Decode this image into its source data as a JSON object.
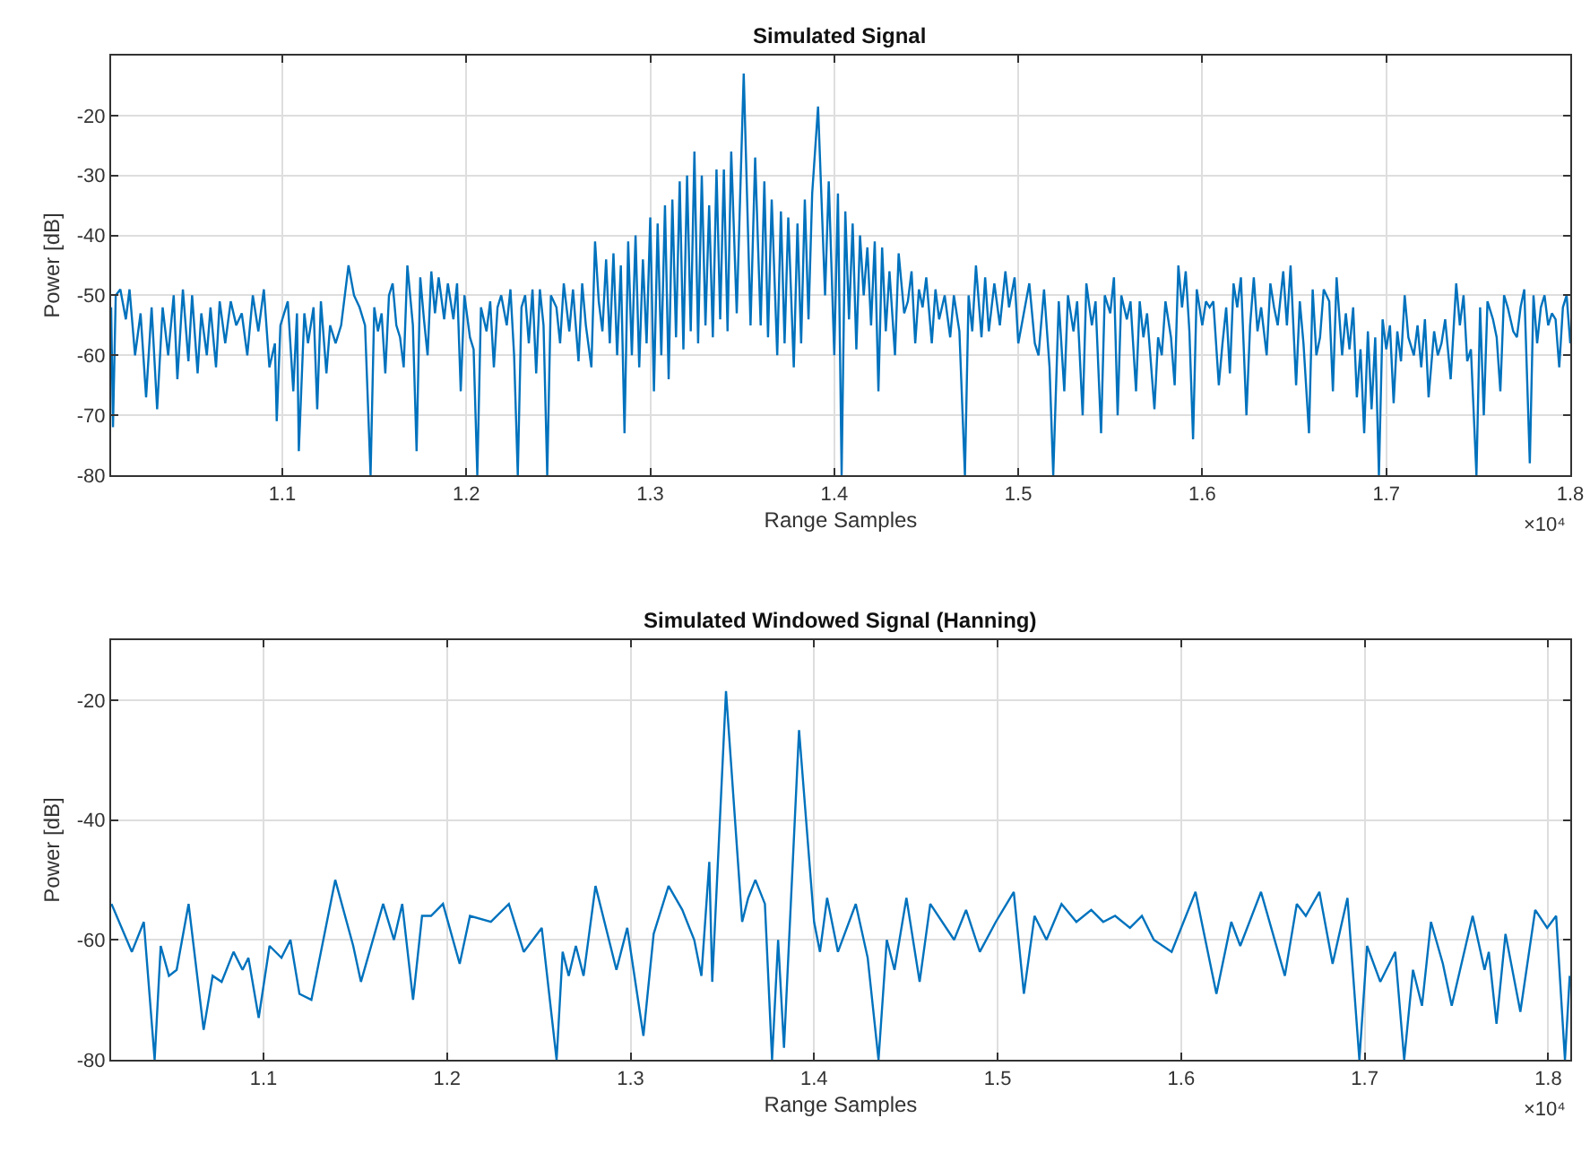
{
  "chart_data": [
    {
      "type": "line",
      "title": "Simulated Signal",
      "xlabel": "Range Samples",
      "ylabel": "Power [dB]",
      "x": [
        1.007,
        1.008,
        1.0095,
        1.012,
        1.015,
        1.017,
        1.02,
        1.023,
        1.026,
        1.029,
        1.032,
        1.035,
        1.038,
        1.041,
        1.043,
        1.046,
        1.049,
        1.051,
        1.054,
        1.056,
        1.059,
        1.061,
        1.064,
        1.066,
        1.069,
        1.072,
        1.075,
        1.078,
        1.081,
        1.084,
        1.087,
        1.09,
        1.093,
        1.096,
        1.097,
        1.099,
        1.103,
        1.106,
        1.108,
        1.109,
        1.112,
        1.114,
        1.117,
        1.119,
        1.121,
        1.124,
        1.126,
        1.129,
        1.132,
        1.136,
        1.139,
        1.142,
        1.145,
        1.148,
        1.15,
        1.152,
        1.154,
        1.156,
        1.158,
        1.16,
        1.162,
        1.164,
        1.166,
        1.168,
        1.171,
        1.173,
        1.175,
        1.177,
        1.179,
        1.181,
        1.183,
        1.185,
        1.188,
        1.19,
        1.193,
        1.195,
        1.197,
        1.199,
        1.202,
        1.204,
        1.206,
        1.208,
        1.211,
        1.213,
        1.215,
        1.217,
        1.219,
        1.222,
        1.224,
        1.226,
        1.228,
        1.23,
        1.232,
        1.234,
        1.236,
        1.238,
        1.24,
        1.242,
        1.244,
        1.246,
        1.249,
        1.251,
        1.253,
        1.256,
        1.258,
        1.261,
        1.263,
        1.265,
        1.268,
        1.27,
        1.272,
        1.274,
        1.276,
        1.278,
        1.28,
        1.282,
        1.284,
        1.286,
        1.288,
        1.29,
        1.292,
        1.294,
        1.296,
        1.298,
        1.3,
        1.302,
        1.304,
        1.306,
        1.308,
        1.31,
        1.312,
        1.314,
        1.316,
        1.318,
        1.32,
        1.322,
        1.324,
        1.326,
        1.328,
        1.33,
        1.332,
        1.334,
        1.336,
        1.338,
        1.34,
        1.342,
        1.344,
        1.347,
        1.3508,
        1.3545,
        1.357,
        1.36,
        1.362,
        1.364,
        1.366,
        1.369,
        1.371,
        1.373,
        1.375,
        1.378,
        1.38,
        1.382,
        1.384,
        1.386,
        1.388,
        1.3912,
        1.395,
        1.397,
        1.4,
        1.402,
        1.404,
        1.406,
        1.408,
        1.41,
        1.412,
        1.414,
        1.416,
        1.418,
        1.42,
        1.422,
        1.424,
        1.426,
        1.428,
        1.43,
        1.433,
        1.435,
        1.438,
        1.44,
        1.442,
        1.444,
        1.446,
        1.448,
        1.45,
        1.453,
        1.455,
        1.457,
        1.46,
        1.463,
        1.465,
        1.468,
        1.471,
        1.473,
        1.475,
        1.477,
        1.48,
        1.482,
        1.484,
        1.487,
        1.49,
        1.493,
        1.495,
        1.498,
        1.5,
        1.503,
        1.506,
        1.509,
        1.511,
        1.514,
        1.517,
        1.519,
        1.522,
        1.525,
        1.527,
        1.53,
        1.532,
        1.535,
        1.537,
        1.54,
        1.542,
        1.545,
        1.547,
        1.55,
        1.552,
        1.554,
        1.556,
        1.559,
        1.561,
        1.564,
        1.566,
        1.568,
        1.57,
        1.574,
        1.576,
        1.578,
        1.58,
        1.583,
        1.585,
        1.587,
        1.589,
        1.591,
        1.593,
        1.595,
        1.597,
        1.6,
        1.602,
        1.604,
        1.606,
        1.609,
        1.611,
        1.613,
        1.615,
        1.617,
        1.619,
        1.621,
        1.624,
        1.626,
        1.628,
        1.63,
        1.632,
        1.635,
        1.637,
        1.639,
        1.641,
        1.644,
        1.646,
        1.648,
        1.651,
        1.653,
        1.655,
        1.658,
        1.66,
        1.662,
        1.664,
        1.666,
        1.669,
        1.671,
        1.673,
        1.676,
        1.678,
        1.68,
        1.682,
        1.684,
        1.686,
        1.688,
        1.69,
        1.692,
        1.694,
        1.696,
        1.698,
        1.7,
        1.702,
        1.704,
        1.706,
        1.708,
        1.71,
        1.712,
        1.715,
        1.717,
        1.719,
        1.721,
        1.723,
        1.726,
        1.728,
        1.73,
        1.732,
        1.735,
        1.738,
        1.74,
        1.742,
        1.744,
        1.746,
        1.749,
        1.751,
        1.753,
        1.755,
        1.758,
        1.76,
        1.762,
        1.764,
        1.766,
        1.769,
        1.771,
        1.773,
        1.775,
        1.778,
        1.78,
        1.782,
        1.784,
        1.786,
        1.788,
        1.79,
        1.792,
        1.794,
        1.796,
        1.798,
        1.8
      ],
      "series": [
        {
          "color": "#0072bd",
          "values": [
            -52,
            -72,
            -50,
            -49,
            -54,
            -49,
            -60,
            -53,
            -67,
            -52,
            -69,
            -52,
            -60,
            -50,
            -64,
            -49,
            -61,
            -50,
            -63,
            -53,
            -60,
            -52,
            -62,
            -51,
            -58,
            -51,
            -55,
            -53,
            -60,
            -50,
            -56,
            -49,
            -62,
            -58,
            -71,
            -55,
            -51,
            -66,
            -53,
            -76,
            -53,
            -58,
            -52,
            -69,
            -51,
            -63,
            -55,
            -58,
            -55,
            -45,
            -50,
            -52,
            -55,
            -80,
            -52,
            -56,
            -53,
            -63,
            -50,
            -48,
            -55,
            -57,
            -62,
            -45,
            -55,
            -76,
            -47,
            -54,
            -60,
            -46,
            -53,
            -47,
            -54,
            -48,
            -54,
            -48,
            -66,
            -50,
            -57,
            -59,
            -80,
            -52,
            -56,
            -51,
            -62,
            -52,
            -50,
            -55,
            -49,
            -60,
            -80,
            -52,
            -50,
            -58,
            -49,
            -63,
            -49,
            -55,
            -80,
            -50,
            -52,
            -58,
            -48,
            -56,
            -49,
            -61,
            -48,
            -55,
            -62,
            -41,
            -51,
            -56,
            -44,
            -58,
            -43,
            -60,
            -45,
            -73,
            -41,
            -60,
            -40,
            -62,
            -44,
            -58,
            -37,
            -66,
            -38,
            -60,
            -35,
            -64,
            -34,
            -57,
            -31,
            -59,
            -30,
            -56,
            -26,
            -58,
            -30,
            -55,
            -35,
            -57,
            -29,
            -54,
            -29,
            -56,
            -26,
            -53,
            -13,
            -55,
            -27,
            -55,
            -31,
            -57,
            -34,
            -60,
            -36,
            -58,
            -37,
            -62,
            -38,
            -58,
            -34,
            -54,
            -33,
            -18.5,
            -50,
            -31,
            -60,
            -33,
            -80,
            -36,
            -54,
            -38,
            -59,
            -40,
            -50,
            -42,
            -55,
            -41,
            -66,
            -42,
            -56,
            -46,
            -60,
            -43,
            -53,
            -51,
            -46,
            -58,
            -49,
            -52,
            -47,
            -58,
            -49,
            -54,
            -50,
            -57,
            -50,
            -56,
            -80,
            -50,
            -56,
            -45,
            -57,
            -47,
            -56,
            -48,
            -55,
            -46,
            -52,
            -47,
            -58,
            -53,
            -48,
            -58,
            -60,
            -49,
            -62,
            -80,
            -51,
            -66,
            -50,
            -56,
            -51,
            -70,
            -48,
            -55,
            -51,
            -73,
            -50,
            -53,
            -47,
            -70,
            -50,
            -54,
            -51,
            -66,
            -51,
            -57,
            -53,
            -69,
            -57,
            -60,
            -51,
            -57,
            -65,
            -45,
            -52,
            -46,
            -56,
            -74,
            -49,
            -55,
            -51,
            -52,
            -51,
            -65,
            -58,
            -52,
            -63,
            -48,
            -52,
            -47,
            -70,
            -55,
            -47,
            -56,
            -52,
            -60,
            -48,
            -52,
            -55,
            -46,
            -55,
            -45,
            -65,
            -51,
            -58,
            -73,
            -49,
            -60,
            -57,
            -49,
            -51,
            -66,
            -47,
            -60,
            -53,
            -59,
            -52,
            -67,
            -59,
            -73,
            -56,
            -69,
            -57,
            -80,
            -54,
            -59,
            -55,
            -68,
            -56,
            -61,
            -50,
            -57,
            -60,
            -55,
            -62,
            -54,
            -67,
            -56,
            -60,
            -58,
            -54,
            -64,
            -48,
            -55,
            -50,
            -61,
            -59,
            -80,
            -52,
            -70,
            -51,
            -54,
            -57,
            -66,
            -50,
            -52,
            -56,
            -57,
            -52,
            -49,
            -78,
            -50,
            -58,
            -52,
            -50,
            -55,
            -53,
            -54,
            -62,
            -52,
            -50,
            -58
          ]
        }
      ],
      "xlim": [
        1.007,
        1.8
      ],
      "ylim": [
        -80,
        -10
      ],
      "xticks": [
        1.1,
        1.2,
        1.3,
        1.4,
        1.5,
        1.6,
        1.7,
        1.8
      ],
      "yticks": [
        -80,
        -70,
        -60,
        -50,
        -40,
        -30,
        -20
      ],
      "grid": true,
      "annotations": [
        "×10⁴"
      ]
    },
    {
      "type": "line",
      "title": "Simulated Windowed Signal (Hanning)",
      "xlabel": "Range Samples",
      "ylabel": "Power [dB]",
      "x": [
        1.0172,
        1.0283,
        1.0348,
        1.0407,
        1.044,
        1.0485,
        1.0527,
        1.0592,
        1.0674,
        1.0723,
        1.0772,
        1.0837,
        1.0886,
        1.0918,
        1.0974,
        1.1033,
        1.1098,
        1.1147,
        1.1196,
        1.1261,
        1.1391,
        1.1489,
        1.1531,
        1.1652,
        1.1711,
        1.1756,
        1.1815,
        1.1864,
        1.1913,
        1.1978,
        1.2069,
        1.2125,
        1.2239,
        1.2337,
        1.2418,
        1.2516,
        1.2597,
        1.263,
        1.2663,
        1.2702,
        1.2744,
        1.2809,
        1.2923,
        1.2982,
        1.307,
        1.3126,
        1.3207,
        1.3282,
        1.3347,
        1.3386,
        1.3429,
        1.3445,
        1.352,
        1.3608,
        1.3641,
        1.368,
        1.3732,
        1.3771,
        1.3804,
        1.3836,
        1.3918,
        1.4,
        1.4032,
        1.4071,
        1.413,
        1.4227,
        1.4292,
        1.4351,
        1.4396,
        1.4438,
        1.4503,
        1.4575,
        1.4633,
        1.4763,
        1.4828,
        1.4903,
        1.499,
        1.5088,
        1.5143,
        1.5201,
        1.5266,
        1.5348,
        1.5429,
        1.551,
        1.5575,
        1.564,
        1.5721,
        1.5786,
        1.5851,
        1.5948,
        1.6078,
        1.6192,
        1.6273,
        1.6322,
        1.6435,
        1.6565,
        1.663,
        1.6679,
        1.6753,
        1.6825,
        1.6906,
        1.6971,
        1.7013,
        1.7085,
        1.7166,
        1.7215,
        1.7263,
        1.7312,
        1.7361,
        1.7426,
        1.7474,
        1.7588,
        1.7653,
        1.7676,
        1.7718,
        1.7767,
        1.7848,
        1.7929,
        1.7994,
        1.8043,
        1.8091,
        1.8117
      ],
      "series": [
        {
          "color": "#0072bd",
          "values": [
            -54,
            -62,
            -57,
            -80,
            -61,
            -66,
            -65,
            -54,
            -75,
            -66,
            -67,
            -62,
            -65,
            -63,
            -73,
            -61,
            -63,
            -60,
            -69,
            -70,
            -50,
            -61,
            -67,
            -54,
            -60,
            -54,
            -70,
            -56,
            -56,
            -54,
            -64,
            -56,
            -57,
            -54,
            -62,
            -58,
            -80,
            -62,
            -66,
            -61,
            -66,
            -51,
            -65,
            -58,
            -76,
            -59,
            -51,
            -55,
            -60,
            -66,
            -47,
            -67,
            -18.5,
            -57,
            -53,
            -50,
            -54,
            -80,
            -60,
            -78,
            -25,
            -57,
            -62,
            -53,
            -62,
            -54,
            -63,
            -80,
            -60,
            -65,
            -53,
            -67,
            -54,
            -60,
            -55,
            -62,
            -57,
            -52,
            -69,
            -56,
            -60,
            -54,
            -57,
            -55,
            -57,
            -56,
            -58,
            -56,
            -60,
            -62,
            -52,
            -69,
            -57,
            -61,
            -52,
            -66,
            -54,
            -56,
            -52,
            -64,
            -53,
            -80,
            -61,
            -67,
            -62,
            -80,
            -65,
            -71,
            -57,
            -64,
            -71,
            -56,
            -65,
            -62,
            -74,
            -59,
            -72,
            -55,
            -58,
            -56,
            -80,
            -66
          ]
        }
      ],
      "xlim": [
        1.017,
        1.812
      ],
      "ylim": [
        -80,
        -10
      ],
      "xticks": [
        1.1,
        1.2,
        1.3,
        1.4,
        1.5,
        1.6,
        1.7,
        1.8
      ],
      "yticks": [
        -80,
        -60,
        -40,
        -20
      ],
      "grid": true,
      "annotations": [
        "×10⁴"
      ]
    }
  ]
}
